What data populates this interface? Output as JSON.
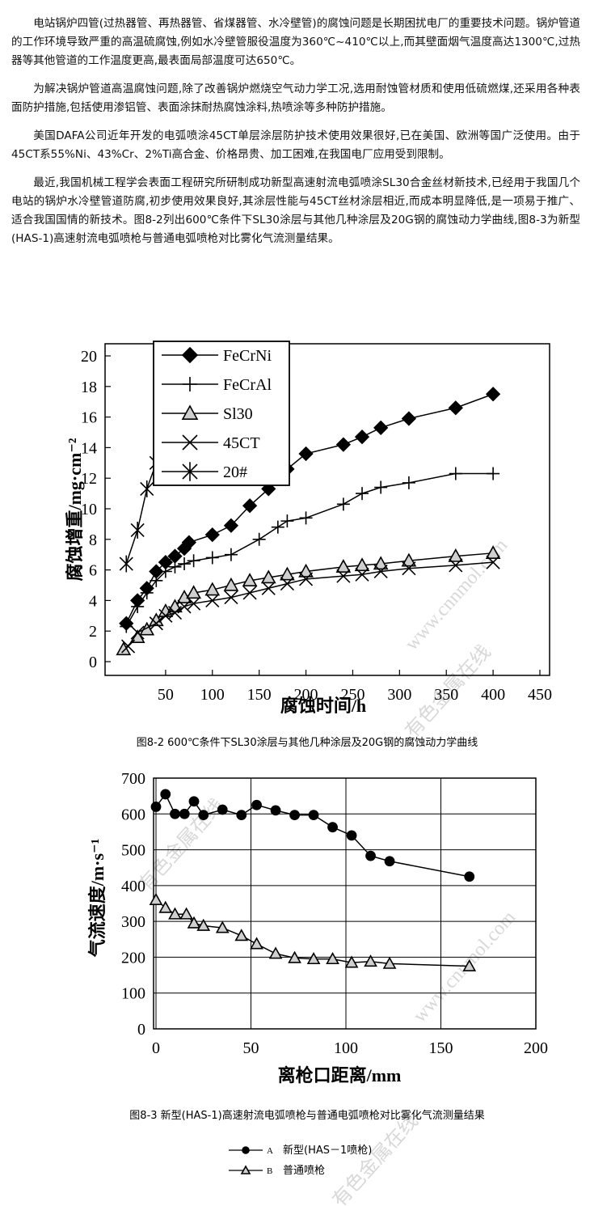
{
  "paragraphs": [
    "电站锅炉四管(过热器管、再热器管、省煤器管、水冷壁管)的腐蚀问题是长期困扰电厂的重要技术问题。锅炉管道的工作环境导致严重的高温硫腐蚀,例如水冷壁管服役温度为360℃~410℃以上,而其壁面烟气温度高达1300℃,过热器等其他管道的工作温度更高,最表面局部温度可达650℃。",
    "为解决锅炉管道高温腐蚀问题,除了改善锅炉燃烧空气动力学工况,选用耐蚀管材质和使用低硫燃煤,还采用各种表面防护措施,包括使用渗铝管、表面涂抹耐热腐蚀涂料,热喷涂等多种防护措施。",
    "美国DAFA公司近年开发的电弧喷涂45CT单层涂层防护技术使用效果很好,已在美国、欧洲等国广泛使用。由于45CT系55%Ni、43%Cr、2%Ti高合金、价格昂贵、加工困难,在我国电厂应用受到限制。",
    "最近,我国机械工程学会表面工程研究所研制成功新型高速射流电弧喷涂SL30合金丝材新技术,已经用于我国几个电站的锅炉水冷壁管道防腐,初步使用效果良好,其涂层性能与45CT丝材涂层相近,而成本明显降低,是一项易于推广、适合我国国情的新技术。图8-2列出600℃条件下SL30涂层与其他几种涂层及20G钢的腐蚀动力学曲线,图8-3为新型(HAS-1)高速射流电弧喷枪与普通电弧喷枪对比雾化气流测量结果。"
  ],
  "watermarks": [
    "有色金属在线",
    "www.cnnmol.com"
  ],
  "chart_data": [
    {
      "type": "line",
      "caption": "图8-2 600℃条件下SL30涂层与其他几种涂层及20G钢的腐蚀动力学曲线",
      "x_label": "腐蚀时间/h",
      "y_label": "腐蚀增重/mg·cm⁻²",
      "xlim": [
        0,
        450
      ],
      "ylim": [
        0,
        20
      ],
      "xticks": [
        50,
        100,
        150,
        200,
        250,
        300,
        350,
        400,
        450
      ],
      "yticks": [
        0,
        2,
        4,
        6,
        8,
        10,
        12,
        14,
        16,
        18,
        20
      ],
      "grid": false,
      "color": "#000000",
      "series": [
        {
          "name": "FeCrNi",
          "marker": "diamond",
          "x": [
            8,
            20,
            30,
            40,
            50,
            60,
            70,
            75,
            100,
            120,
            140,
            160,
            180,
            200,
            240,
            260,
            280,
            310,
            360,
            400
          ],
          "values": [
            2.5,
            4,
            4.8,
            5.9,
            6.5,
            6.9,
            7.4,
            7.8,
            8.3,
            8.9,
            10.2,
            11.3,
            12.6,
            13.6,
            14.2,
            14.7,
            15.3,
            15.9,
            16.6,
            17.5
          ]
        },
        {
          "name": "FeCrAl",
          "marker": "plus",
          "x": [
            8,
            20,
            30,
            40,
            50,
            60,
            70,
            80,
            100,
            120,
            150,
            170,
            180,
            200,
            240,
            260,
            280,
            310,
            360,
            400
          ],
          "values": [
            2.3,
            3.6,
            4.5,
            5.3,
            5.9,
            6.2,
            6.4,
            6.6,
            6.8,
            7,
            8,
            8.8,
            9.2,
            9.4,
            10.3,
            11,
            11.4,
            11.7,
            12.3,
            12.3
          ]
        },
        {
          "name": "Sl30",
          "marker": "triangle",
          "x": [
            5,
            20,
            30,
            40,
            50,
            60,
            70,
            80,
            100,
            120,
            140,
            160,
            180,
            200,
            240,
            260,
            280,
            310,
            360,
            400
          ],
          "values": [
            0.8,
            1.6,
            2.1,
            2.7,
            3.3,
            3.6,
            4.2,
            4.5,
            4.7,
            5,
            5.3,
            5.5,
            5.7,
            5.9,
            6.2,
            6.3,
            6.4,
            6.6,
            6.9,
            7.1
          ]
        },
        {
          "name": "45CT",
          "marker": "x",
          "x": [
            10,
            20,
            40,
            50,
            60,
            70,
            80,
            100,
            120,
            140,
            160,
            180,
            200,
            240,
            260,
            280,
            310,
            360,
            400
          ],
          "values": [
            1,
            1.9,
            2.5,
            3,
            3.2,
            3.6,
            3.8,
            4,
            4.2,
            4.5,
            4.8,
            5.1,
            5.4,
            5.6,
            5.7,
            5.9,
            6.1,
            6.3,
            6.5
          ]
        },
        {
          "name": "20#",
          "marker": "star",
          "x": [
            8,
            20,
            30,
            40,
            50
          ],
          "values": [
            6.4,
            8.6,
            11.3,
            13,
            14
          ]
        }
      ]
    },
    {
      "type": "line",
      "caption": "图8-3 新型(HAS-1)高速射流电弧喷枪与普通电弧喷枪对比雾化气流测量结果",
      "x_label": "离枪口距离/mm",
      "y_label": "气流速度/m·s⁻¹",
      "xlim": [
        0,
        200
      ],
      "ylim": [
        0,
        700
      ],
      "xticks": [
        0,
        50,
        100,
        150,
        200
      ],
      "yticks": [
        0,
        100,
        200,
        300,
        400,
        500,
        600,
        700
      ],
      "grid": true,
      "color": "#000000",
      "series": [
        {
          "key": "A",
          "name": "新型(HAS－1喷枪)",
          "marker": "circle",
          "x": [
            0,
            5,
            10,
            15,
            20,
            25,
            35,
            45,
            53,
            63,
            73,
            83,
            93,
            103,
            113,
            123,
            165
          ],
          "values": [
            620,
            655,
            600,
            600,
            635,
            597,
            612,
            597,
            625,
            610,
            597,
            597,
            563,
            540,
            483,
            468,
            425
          ]
        },
        {
          "key": "B",
          "name": "普通喷枪",
          "marker": "triangle",
          "x": [
            0,
            5,
            10,
            16,
            20,
            25,
            35,
            45,
            53,
            63,
            73,
            83,
            93,
            103,
            113,
            123,
            165
          ],
          "values": [
            360,
            338,
            320,
            320,
            295,
            288,
            282,
            260,
            237,
            210,
            198,
            195,
            195,
            185,
            188,
            182,
            175
          ]
        }
      ]
    }
  ]
}
